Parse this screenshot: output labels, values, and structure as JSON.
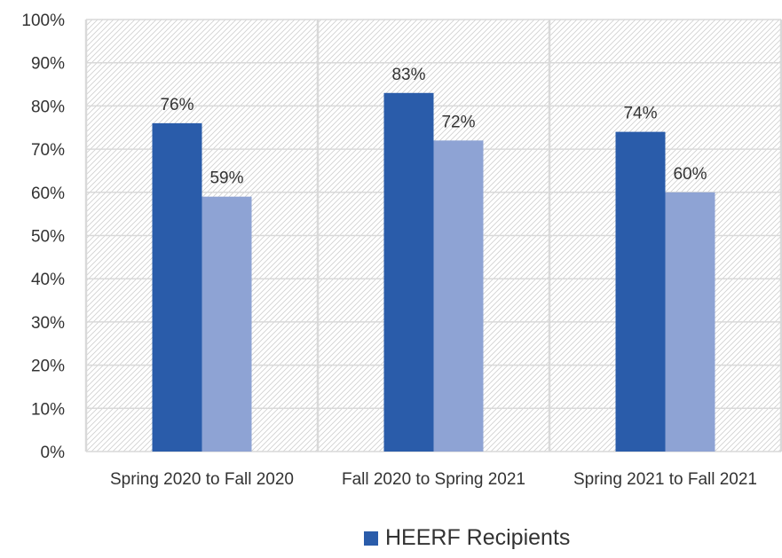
{
  "chart_data": {
    "type": "bar",
    "categories": [
      "Spring 2020 to Fall 2020",
      "Fall 2020 to Spring 2021",
      "Spring 2021 to Fall 2021"
    ],
    "series": [
      {
        "name": "HEERF Recipients",
        "values": [
          76,
          83,
          74
        ],
        "labels": [
          "76%",
          "83%",
          "74%"
        ],
        "color": "#2a5caa"
      },
      {
        "values": [
          59,
          72,
          60
        ],
        "labels": [
          "59%",
          "72%",
          "60%"
        ],
        "color": "#8ea3d4"
      }
    ],
    "ylim": [
      0,
      100
    ],
    "yticks": [
      "0%",
      "10%",
      "20%",
      "30%",
      "40%",
      "50%",
      "60%",
      "70%",
      "80%",
      "90%",
      "100%"
    ],
    "grid": true,
    "legend_position": "bottom",
    "legend_label": "HEERF Recipients",
    "colors": {
      "grid": "#d9d9d9",
      "hatch": "#d0d0d0",
      "text": "#333333"
    }
  }
}
